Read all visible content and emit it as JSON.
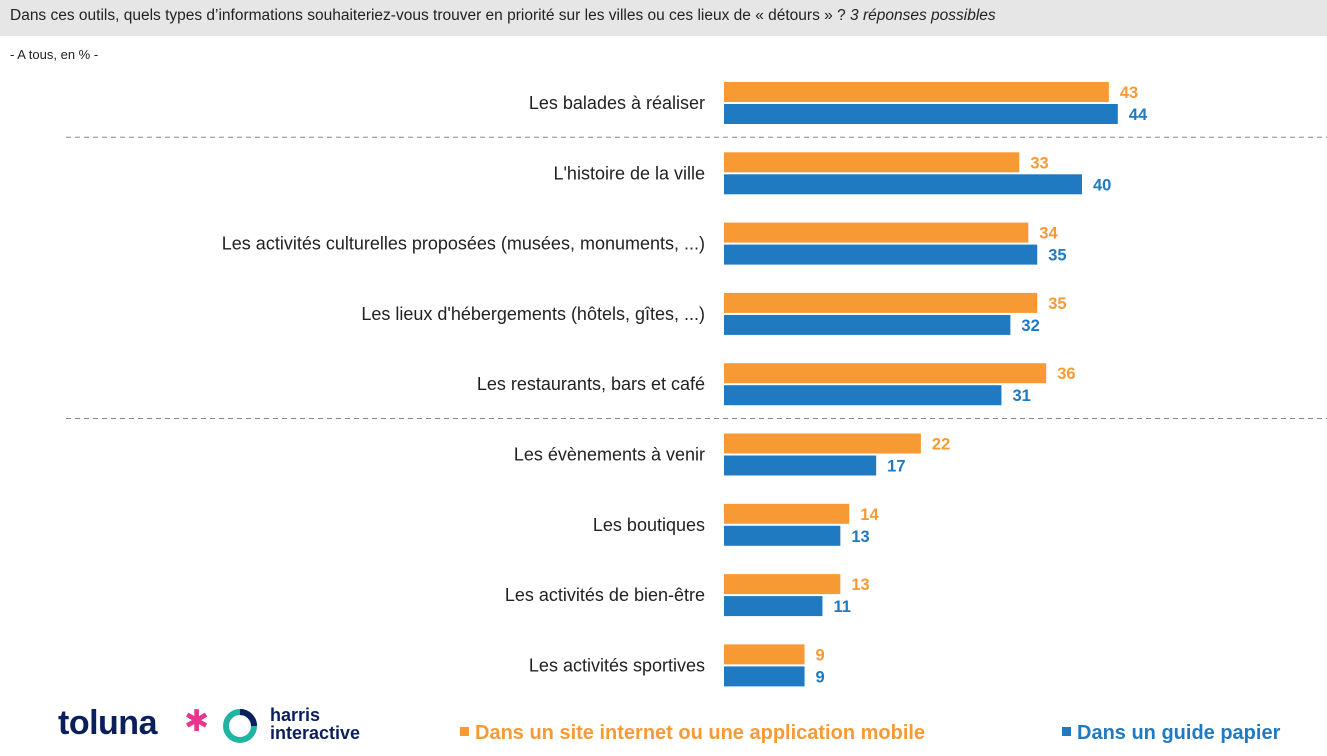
{
  "header": {
    "question": "Dans ces outils, quels types d’informations souhaiteriez-vous trouver en priorité sur les villes ou ces lieux de « détours » ?",
    "note": "3 réponses possibles"
  },
  "base_note": "- A tous, en % -",
  "colors": {
    "series1": "#f79a33",
    "series2": "#1f7ac1",
    "header_bg": "#e6e6e6"
  },
  "chart_data": {
    "type": "bar",
    "orientation": "horizontal",
    "categories": [
      "Les balades à réaliser",
      "L'histoire de la ville",
      "Les activités culturelles proposées (musées, monuments, ...)",
      "Les lieux d'hébergements (hôtels, gîtes, ...)",
      "Les restaurants, bars et café",
      "Les évènements à venir",
      "Les boutiques",
      "Les activités de bien-être",
      "Les activités sportives"
    ],
    "series": [
      {
        "name": "Dans un site internet ou une application mobile",
        "color": "#f79a33",
        "values": [
          43,
          33,
          34,
          35,
          36,
          22,
          14,
          13,
          9
        ]
      },
      {
        "name": "Dans un guide papier",
        "color": "#1f7ac1",
        "values": [
          44,
          40,
          35,
          32,
          31,
          17,
          13,
          11,
          9
        ]
      }
    ],
    "separators_after": [
      0,
      4
    ],
    "xlim": [
      0,
      100
    ],
    "grid": false,
    "legend_position": "bottom"
  },
  "footer": {
    "logo_toluna": "toluna",
    "logo_harris_line1": "harris",
    "logo_harris_line2": "interactive",
    "legend": [
      "Dans un site internet ou une application mobile",
      "Dans un guide papier"
    ]
  }
}
